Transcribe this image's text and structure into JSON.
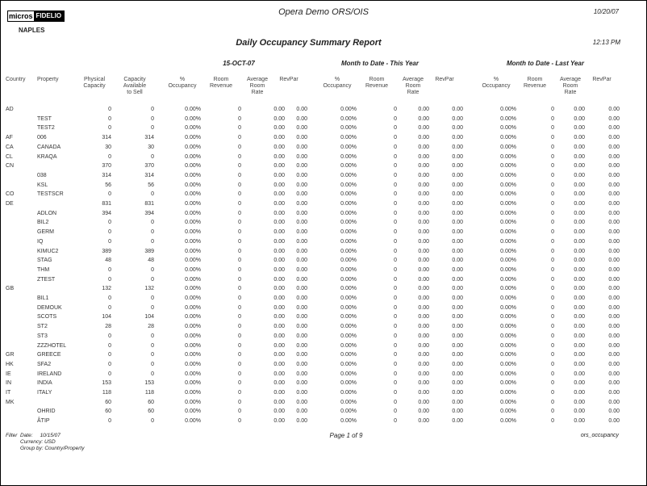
{
  "logo": {
    "left": "micros",
    "right": "FIDELIO"
  },
  "header": {
    "system_title": "Opera Demo ORS/OIS",
    "print_date": "10/20/07",
    "property": "NAPLES",
    "report_title": "Daily Occupancy Summary Report",
    "print_time": "12:13 PM"
  },
  "groups": {
    "day": "15-OCT-07",
    "mtd": "Month to Date - This Year",
    "ly": "Month to Date - Last Year"
  },
  "columns": {
    "country": "Country",
    "property": "Property",
    "physical": [
      "Physical",
      "Capacity"
    ],
    "available": [
      "Capacity",
      "Available",
      "to Sell"
    ],
    "occupancy": [
      "%",
      "Occupancy"
    ],
    "revenue": [
      "Room",
      "Revenue"
    ],
    "avg_rate": [
      "Average",
      "Room",
      "Rate"
    ],
    "revpar": [
      "RevPar"
    ]
  },
  "rows": [
    [
      "AD",
      "",
      "0",
      "0",
      "0.00%",
      "0",
      "0.00",
      "0.00",
      "0.00%",
      "0",
      "0.00",
      "0.00",
      "0.00%",
      "0",
      "0.00",
      "0.00"
    ],
    [
      "",
      "TEST",
      "0",
      "0",
      "0.00%",
      "0",
      "0.00",
      "0.00",
      "0.00%",
      "0",
      "0.00",
      "0.00",
      "0.00%",
      "0",
      "0.00",
      "0.00"
    ],
    [
      "",
      "TEST2",
      "0",
      "0",
      "0.00%",
      "0",
      "0.00",
      "0.00",
      "0.00%",
      "0",
      "0.00",
      "0.00",
      "0.00%",
      "0",
      "0.00",
      "0.00"
    ],
    [
      "AF",
      "006",
      "314",
      "314",
      "0.00%",
      "0",
      "0.00",
      "0.00",
      "0.00%",
      "0",
      "0.00",
      "0.00",
      "0.00%",
      "0",
      "0.00",
      "0.00"
    ],
    [
      "CA",
      "CANADA",
      "30",
      "30",
      "0.00%",
      "0",
      "0.00",
      "0.00",
      "0.00%",
      "0",
      "0.00",
      "0.00",
      "0.00%",
      "0",
      "0.00",
      "0.00"
    ],
    [
      "CL",
      "KRAQA",
      "0",
      "0",
      "0.00%",
      "0",
      "0.00",
      "0.00",
      "0.00%",
      "0",
      "0.00",
      "0.00",
      "0.00%",
      "0",
      "0.00",
      "0.00"
    ],
    [
      "CN",
      "",
      "370",
      "370",
      "0.00%",
      "0",
      "0.00",
      "0.00",
      "0.00%",
      "0",
      "0.00",
      "0.00",
      "0.00%",
      "0",
      "0.00",
      "0.00"
    ],
    [
      "",
      "038",
      "314",
      "314",
      "0.00%",
      "0",
      "0.00",
      "0.00",
      "0.00%",
      "0",
      "0.00",
      "0.00",
      "0.00%",
      "0",
      "0.00",
      "0.00"
    ],
    [
      "",
      "KSL",
      "56",
      "56",
      "0.00%",
      "0",
      "0.00",
      "0.00",
      "0.00%",
      "0",
      "0.00",
      "0.00",
      "0.00%",
      "0",
      "0.00",
      "0.00"
    ],
    [
      "CO",
      "TESTSCR",
      "0",
      "0",
      "0.00%",
      "0",
      "0.00",
      "0.00",
      "0.00%",
      "0",
      "0.00",
      "0.00",
      "0.00%",
      "0",
      "0.00",
      "0.00"
    ],
    [
      "DE",
      "",
      "831",
      "831",
      "0.00%",
      "0",
      "0.00",
      "0.00",
      "0.00%",
      "0",
      "0.00",
      "0.00",
      "0.00%",
      "0",
      "0.00",
      "0.00"
    ],
    [
      "",
      "ADLON",
      "394",
      "394",
      "0.00%",
      "0",
      "0.00",
      "0.00",
      "0.00%",
      "0",
      "0.00",
      "0.00",
      "0.00%",
      "0",
      "0.00",
      "0.00"
    ],
    [
      "",
      "BIL2",
      "0",
      "0",
      "0.00%",
      "0",
      "0.00",
      "0.00",
      "0.00%",
      "0",
      "0.00",
      "0.00",
      "0.00%",
      "0",
      "0.00",
      "0.00"
    ],
    [
      "",
      "GERM",
      "0",
      "0",
      "0.00%",
      "0",
      "0.00",
      "0.00",
      "0.00%",
      "0",
      "0.00",
      "0.00",
      "0.00%",
      "0",
      "0.00",
      "0.00"
    ],
    [
      "",
      "IQ",
      "0",
      "0",
      "0.00%",
      "0",
      "0.00",
      "0.00",
      "0.00%",
      "0",
      "0.00",
      "0.00",
      "0.00%",
      "0",
      "0.00",
      "0.00"
    ],
    [
      "",
      "KIMUC2",
      "389",
      "389",
      "0.00%",
      "0",
      "0.00",
      "0.00",
      "0.00%",
      "0",
      "0.00",
      "0.00",
      "0.00%",
      "0",
      "0.00",
      "0.00"
    ],
    [
      "",
      "STAG",
      "48",
      "48",
      "0.00%",
      "0",
      "0.00",
      "0.00",
      "0.00%",
      "0",
      "0.00",
      "0.00",
      "0.00%",
      "0",
      "0.00",
      "0.00"
    ],
    [
      "",
      "THM",
      "0",
      "0",
      "0.00%",
      "0",
      "0.00",
      "0.00",
      "0.00%",
      "0",
      "0.00",
      "0.00",
      "0.00%",
      "0",
      "0.00",
      "0.00"
    ],
    [
      "",
      "ZTEST",
      "0",
      "0",
      "0.00%",
      "0",
      "0.00",
      "0.00",
      "0.00%",
      "0",
      "0.00",
      "0.00",
      "0.00%",
      "0",
      "0.00",
      "0.00"
    ],
    [
      "GB",
      "",
      "132",
      "132",
      "0.00%",
      "0",
      "0.00",
      "0.00",
      "0.00%",
      "0",
      "0.00",
      "0.00",
      "0.00%",
      "0",
      "0.00",
      "0.00"
    ],
    [
      "",
      "BIL1",
      "0",
      "0",
      "0.00%",
      "0",
      "0.00",
      "0.00",
      "0.00%",
      "0",
      "0.00",
      "0.00",
      "0.00%",
      "0",
      "0.00",
      "0.00"
    ],
    [
      "",
      "DEMOUK",
      "0",
      "0",
      "0.00%",
      "0",
      "0.00",
      "0.00",
      "0.00%",
      "0",
      "0.00",
      "0.00",
      "0.00%",
      "0",
      "0.00",
      "0.00"
    ],
    [
      "",
      "SCOTS",
      "104",
      "104",
      "0.00%",
      "0",
      "0.00",
      "0.00",
      "0.00%",
      "0",
      "0.00",
      "0.00",
      "0.00%",
      "0",
      "0.00",
      "0.00"
    ],
    [
      "",
      "ST2",
      "28",
      "28",
      "0.00%",
      "0",
      "0.00",
      "0.00",
      "0.00%",
      "0",
      "0.00",
      "0.00",
      "0.00%",
      "0",
      "0.00",
      "0.00"
    ],
    [
      "",
      "ST3",
      "0",
      "0",
      "0.00%",
      "0",
      "0.00",
      "0.00",
      "0.00%",
      "0",
      "0.00",
      "0.00",
      "0.00%",
      "0",
      "0.00",
      "0.00"
    ],
    [
      "",
      "ZZZHOTEL",
      "0",
      "0",
      "0.00%",
      "0",
      "0.00",
      "0.00",
      "0.00%",
      "0",
      "0.00",
      "0.00",
      "0.00%",
      "0",
      "0.00",
      "0.00"
    ],
    [
      "GR",
      "GREECE",
      "0",
      "0",
      "0.00%",
      "0",
      "0.00",
      "0.00",
      "0.00%",
      "0",
      "0.00",
      "0.00",
      "0.00%",
      "0",
      "0.00",
      "0.00"
    ],
    [
      "HK",
      "SFA2",
      "0",
      "0",
      "0.00%",
      "0",
      "0.00",
      "0.00",
      "0.00%",
      "0",
      "0.00",
      "0.00",
      "0.00%",
      "0",
      "0.00",
      "0.00"
    ],
    [
      "IE",
      "IRELAND",
      "0",
      "0",
      "0.00%",
      "0",
      "0.00",
      "0.00",
      "0.00%",
      "0",
      "0.00",
      "0.00",
      "0.00%",
      "0",
      "0.00",
      "0.00"
    ],
    [
      "IN",
      "INDIA",
      "153",
      "153",
      "0.00%",
      "0",
      "0.00",
      "0.00",
      "0.00%",
      "0",
      "0.00",
      "0.00",
      "0.00%",
      "0",
      "0.00",
      "0.00"
    ],
    [
      "IT",
      "ITALY",
      "118",
      "118",
      "0.00%",
      "0",
      "0.00",
      "0.00",
      "0.00%",
      "0",
      "0.00",
      "0.00",
      "0.00%",
      "0",
      "0.00",
      "0.00"
    ],
    [
      "MK",
      "",
      "60",
      "60",
      "0.00%",
      "0",
      "0.00",
      "0.00",
      "0.00%",
      "0",
      "0.00",
      "0.00",
      "0.00%",
      "0",
      "0.00",
      "0.00"
    ],
    [
      "",
      "OHRID",
      "60",
      "60",
      "0.00%",
      "0",
      "0.00",
      "0.00",
      "0.00%",
      "0",
      "0.00",
      "0.00",
      "0.00%",
      "0",
      "0.00",
      "0.00"
    ],
    [
      "",
      "ÂTIP",
      "0",
      "0",
      "0.00%",
      "0",
      "0.00",
      "0.00",
      "0.00%",
      "0",
      "0.00",
      "0.00",
      "0.00%",
      "0",
      "0.00",
      "0.00"
    ]
  ],
  "footer": {
    "filter_label": "Filter",
    "date": "Date:     10/15/07",
    "currency": "Currency: USD",
    "group_by": "Group by: Country/Property",
    "page": "Page 1 of 9",
    "report_name": "ors_occupancy"
  }
}
